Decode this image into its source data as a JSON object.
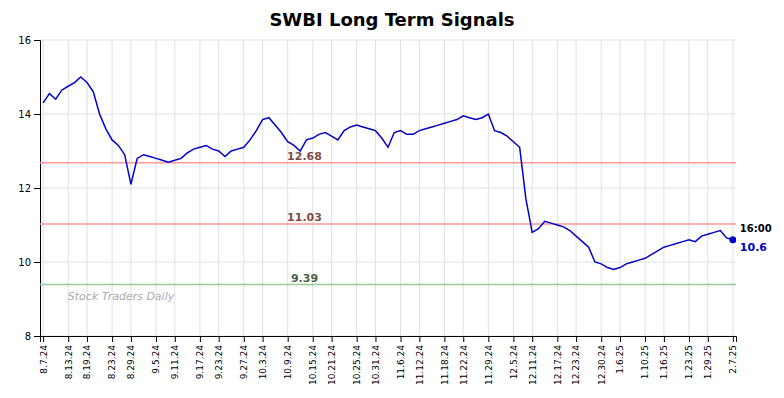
{
  "chart_data": {
    "type": "line",
    "title": "SWBI Long Term Signals",
    "watermark": "Stock Traders Daily",
    "color": "#0000cc",
    "grid": true,
    "ylim": [
      8,
      16
    ],
    "yticks": [
      8,
      10,
      12,
      14,
      16
    ],
    "categories": [
      "8.7.24",
      null,
      null,
      null,
      "8.13.24",
      null,
      null,
      "8.19.24",
      null,
      null,
      null,
      "8.23.24",
      null,
      null,
      "8.29.24",
      null,
      null,
      null,
      "9.5.24",
      null,
      null,
      "9.11.24",
      null,
      null,
      null,
      "9.17.24",
      null,
      null,
      "9.23.24",
      null,
      null,
      null,
      "9.27.24",
      null,
      null,
      "10.3.24",
      null,
      null,
      null,
      "10.9.24",
      null,
      null,
      null,
      "10.15.24",
      null,
      null,
      "10.21.24",
      null,
      null,
      null,
      "10.25.24",
      null,
      null,
      "10.31.24",
      null,
      null,
      null,
      "11.6.24",
      null,
      null,
      "11.12.24",
      null,
      null,
      null,
      "11.18.24",
      null,
      null,
      "11.22.24",
      null,
      null,
      null,
      "11.29.24",
      null,
      null,
      null,
      "12.5.24",
      null,
      null,
      "12.11.24",
      null,
      null,
      null,
      "12.17.24",
      null,
      null,
      "12.23.24",
      null,
      null,
      null,
      "12.30.24",
      null,
      null,
      "1.6.25",
      null,
      null,
      null,
      "1.10.25",
      null,
      null,
      "1.16.25",
      null,
      null,
      null,
      "1.23.25",
      null,
      null,
      "1.29.25",
      null,
      null,
      null,
      "2.7.25"
    ],
    "values": [
      14.3,
      14.55,
      14.4,
      14.65,
      14.75,
      14.85,
      15.0,
      14.85,
      14.6,
      14.0,
      13.6,
      13.3,
      13.15,
      12.9,
      12.1,
      12.8,
      12.9,
      12.85,
      12.8,
      12.75,
      12.7,
      12.75,
      12.8,
      12.95,
      13.05,
      13.1,
      13.15,
      13.05,
      13.0,
      12.85,
      13.0,
      13.05,
      13.1,
      13.3,
      13.55,
      13.85,
      13.9,
      13.7,
      13.5,
      13.25,
      13.15,
      13.0,
      13.3,
      13.35,
      13.45,
      13.5,
      13.4,
      13.3,
      13.55,
      13.65,
      13.7,
      13.65,
      13.6,
      13.55,
      13.35,
      13.1,
      13.5,
      13.55,
      13.45,
      13.45,
      13.55,
      13.6,
      13.65,
      13.7,
      13.75,
      13.8,
      13.85,
      13.95,
      13.9,
      13.85,
      13.9,
      14.0,
      13.55,
      13.5,
      13.4,
      13.25,
      13.1,
      11.7,
      10.8,
      10.9,
      11.1,
      11.05,
      11.0,
      10.95,
      10.85,
      10.7,
      10.55,
      10.4,
      10.0,
      9.95,
      9.85,
      9.8,
      9.85,
      9.95,
      10.0,
      10.05,
      10.1,
      10.2,
      10.3,
      10.4,
      10.45,
      10.5,
      10.55,
      10.6,
      10.55,
      10.7,
      10.75,
      10.8,
      10.85,
      10.65,
      10.6
    ],
    "reference_lines": [
      {
        "value": 12.68,
        "label": "12.68",
        "color": "#ff9999"
      },
      {
        "value": 11.03,
        "label": "11.03",
        "color": "#ff9999"
      },
      {
        "value": 9.39,
        "label": "9.39",
        "color": "#99cc99"
      }
    ],
    "last_point": {
      "time": "16:00",
      "value": 10.6
    }
  }
}
